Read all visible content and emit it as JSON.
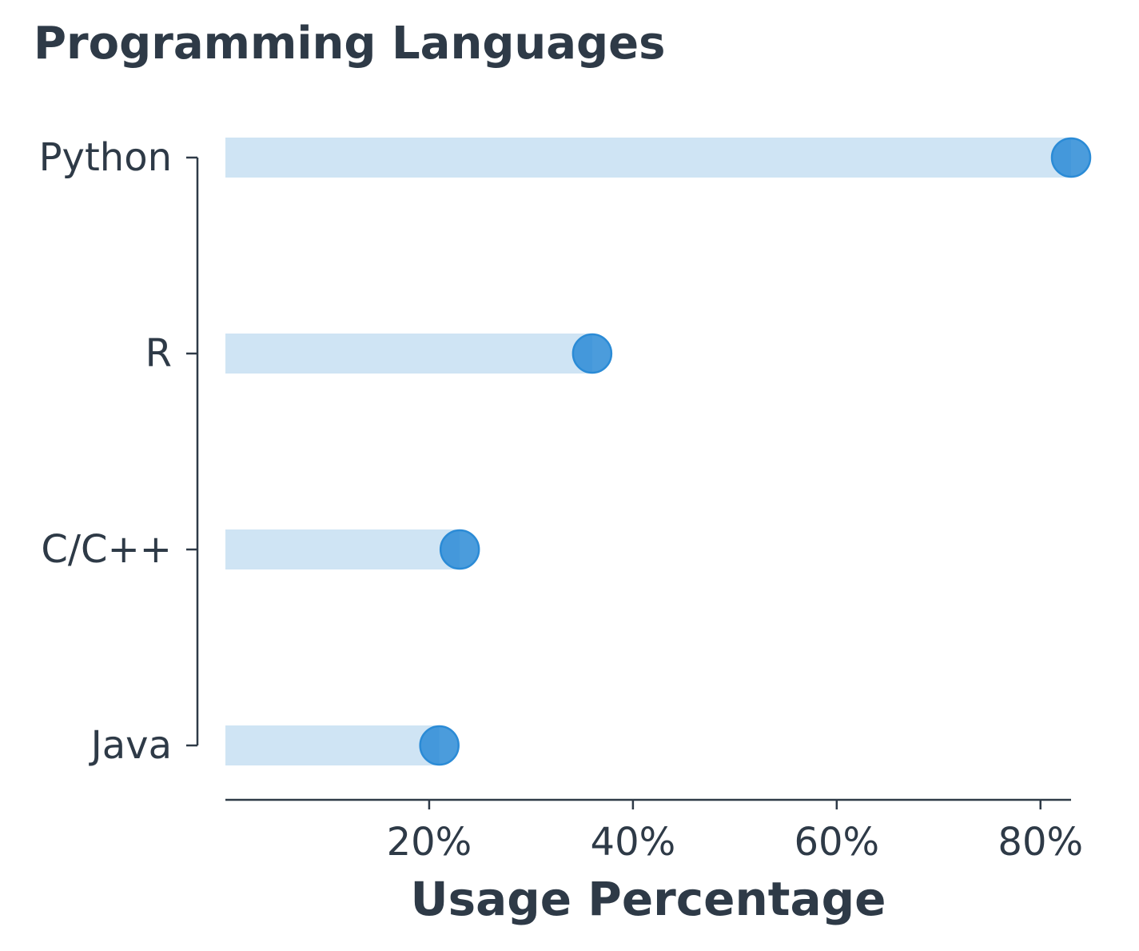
{
  "chart_data": {
    "type": "lollipop",
    "title": "Programming Languages",
    "xlabel": "Usage Percentage",
    "categories": [
      "Python",
      "R",
      "C/C++",
      "Java"
    ],
    "values": [
      83,
      36,
      23,
      21
    ],
    "color": "#2b8bd6",
    "stem_color": "#cfe4f4",
    "xlim": [
      0,
      83
    ],
    "xticks": [
      {
        "value": 20,
        "label": "20%"
      },
      {
        "value": 40,
        "label": "40%"
      },
      {
        "value": 60,
        "label": "60%"
      },
      {
        "value": 80,
        "label": "80%"
      }
    ]
  }
}
